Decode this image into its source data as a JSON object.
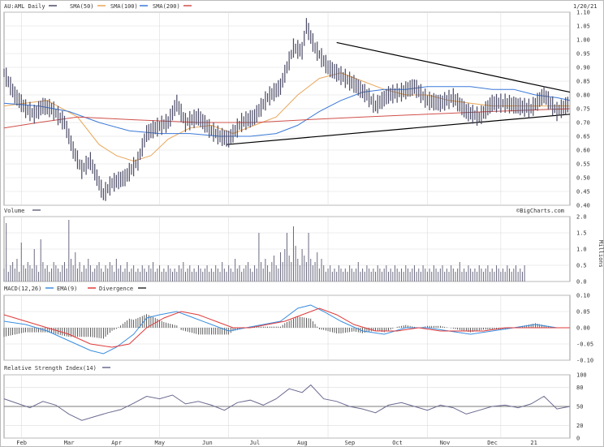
{
  "header": {
    "ticker_label": "AU:AML Daily",
    "sma50_label": "SMA(50)",
    "sma100_label": "SMA(100)",
    "sma200_label": "SMA(200)",
    "date": "1/20/21",
    "watermark": "©BigCharts.com"
  },
  "colors": {
    "price": "#4a4a66",
    "sma50": "#e8a65a",
    "sma100": "#3a78d8",
    "sma200": "#d0504a",
    "grid": "#dcdcdc",
    "axis": "#888888",
    "trend": "#000000",
    "volume": "#6a6a80",
    "macd": "#3a8ee0",
    "ema": "#e03a3a",
    "divergence": "#333333",
    "rsi": "#6a6a90"
  },
  "months": [
    "Feb",
    "Mar",
    "Apr",
    "May",
    "Jun",
    "Jul",
    "Aug",
    "Sep",
    "Oct",
    "Nov",
    "Dec",
    "21"
  ],
  "chart_data": [
    {
      "type": "line",
      "panel": "price",
      "ylim": [
        0.4,
        1.1
      ],
      "y_ticks": [
        "1.10",
        "1.05",
        "1.00",
        "0.95",
        "0.90",
        "0.85",
        "0.80",
        "0.75",
        "0.70",
        "0.65",
        "0.60",
        "0.55",
        "0.50",
        "0.45",
        "0.40"
      ],
      "price_path": [
        [
          0,
          0.88
        ],
        [
          5,
          0.8
        ],
        [
          10,
          0.75
        ],
        [
          14,
          0.73
        ],
        [
          18,
          0.76
        ],
        [
          22,
          0.75
        ],
        [
          28,
          0.7
        ],
        [
          32,
          0.6
        ],
        [
          36,
          0.53
        ],
        [
          40,
          0.56
        ],
        [
          46,
          0.44
        ],
        [
          50,
          0.48
        ],
        [
          56,
          0.5
        ],
        [
          62,
          0.56
        ],
        [
          66,
          0.66
        ],
        [
          70,
          0.68
        ],
        [
          76,
          0.7
        ],
        [
          80,
          0.77
        ],
        [
          84,
          0.7
        ],
        [
          90,
          0.72
        ],
        [
          96,
          0.67
        ],
        [
          100,
          0.65
        ],
        [
          104,
          0.64
        ],
        [
          110,
          0.7
        ],
        [
          116,
          0.72
        ],
        [
          122,
          0.79
        ],
        [
          128,
          0.83
        ],
        [
          134,
          0.97
        ],
        [
          138,
          0.96
        ],
        [
          140,
          1.05
        ],
        [
          144,
          0.97
        ],
        [
          150,
          0.9
        ],
        [
          156,
          0.87
        ],
        [
          162,
          0.84
        ],
        [
          168,
          0.8
        ],
        [
          172,
          0.76
        ],
        [
          178,
          0.8
        ],
        [
          184,
          0.81
        ],
        [
          190,
          0.83
        ],
        [
          196,
          0.78
        ],
        [
          202,
          0.77
        ],
        [
          208,
          0.79
        ],
        [
          214,
          0.74
        ],
        [
          220,
          0.72
        ],
        [
          226,
          0.77
        ],
        [
          232,
          0.77
        ],
        [
          238,
          0.76
        ],
        [
          244,
          0.75
        ],
        [
          250,
          0.8
        ],
        [
          256,
          0.74
        ],
        [
          262,
          0.77
        ]
      ],
      "series": [
        {
          "name": "SMA(50)",
          "path": [
            [
              0,
              0.76
            ],
            [
              20,
              0.78
            ],
            [
              34,
              0.72
            ],
            [
              44,
              0.62
            ],
            [
              52,
              0.58
            ],
            [
              60,
              0.56
            ],
            [
              68,
              0.58
            ],
            [
              76,
              0.64
            ],
            [
              86,
              0.68
            ],
            [
              96,
              0.69
            ],
            [
              106,
              0.66
            ],
            [
              116,
              0.69
            ],
            [
              126,
              0.72
            ],
            [
              136,
              0.8
            ],
            [
              146,
              0.86
            ],
            [
              156,
              0.88
            ],
            [
              166,
              0.85
            ],
            [
              176,
              0.82
            ],
            [
              186,
              0.8
            ],
            [
              196,
              0.8
            ],
            [
              206,
              0.78
            ],
            [
              216,
              0.77
            ],
            [
              226,
              0.76
            ],
            [
              236,
              0.76
            ],
            [
              246,
              0.76
            ],
            [
              256,
              0.76
            ],
            [
              262,
              0.76
            ]
          ]
        },
        {
          "name": "SMA(100)",
          "path": [
            [
              0,
              0.77
            ],
            [
              16,
              0.76
            ],
            [
              30,
              0.74
            ],
            [
              44,
              0.7
            ],
            [
              58,
              0.67
            ],
            [
              72,
              0.66
            ],
            [
              86,
              0.66
            ],
            [
              100,
              0.65
            ],
            [
              114,
              0.65
            ],
            [
              126,
              0.66
            ],
            [
              136,
              0.69
            ],
            [
              146,
              0.74
            ],
            [
              156,
              0.78
            ],
            [
              166,
              0.81
            ],
            [
              176,
              0.82
            ],
            [
              186,
              0.82
            ],
            [
              196,
              0.83
            ],
            [
              206,
              0.83
            ],
            [
              216,
              0.83
            ],
            [
              226,
              0.82
            ],
            [
              236,
              0.82
            ],
            [
              246,
              0.8
            ],
            [
              256,
              0.79
            ],
            [
              262,
              0.78
            ]
          ]
        },
        {
          "name": "SMA(200)",
          "path": [
            [
              0,
              0.68
            ],
            [
              16,
              0.7
            ],
            [
              34,
              0.72
            ],
            [
              60,
              0.71
            ],
            [
              90,
              0.7
            ],
            [
              116,
              0.7
            ],
            [
              140,
              0.71
            ],
            [
              166,
              0.72
            ],
            [
              196,
              0.73
            ],
            [
              226,
              0.74
            ],
            [
              262,
              0.75
            ]
          ]
        }
      ],
      "trendlines": [
        [
          [
            103,
            0.62
          ],
          [
            262,
            0.73
          ]
        ],
        [
          [
            154,
            0.99
          ],
          [
            262,
            0.81
          ]
        ]
      ]
    },
    {
      "type": "bar",
      "panel": "volume",
      "title": "Volume",
      "ylabel": "Millions",
      "ylim": [
        0,
        2.0
      ],
      "y_ticks": [
        "2.0",
        "1.5",
        "1.0",
        "0.5",
        "0.0"
      ],
      "values": [
        0.4,
        1.8,
        0.3,
        0.5,
        0.6,
        0.4,
        0.7,
        0.3,
        1.2,
        0.5,
        0.4,
        0.6,
        0.5,
        0.4,
        1.0,
        0.5,
        0.3,
        1.3,
        0.6,
        0.4,
        0.5,
        0.3,
        0.4,
        0.6,
        0.5,
        0.4,
        0.3,
        0.5,
        0.6,
        0.4,
        1.9,
        0.7,
        0.5,
        0.9,
        0.4,
        0.6,
        0.3,
        0.5,
        0.4,
        0.7,
        0.5,
        0.3,
        0.4,
        0.5,
        0.6,
        0.4,
        0.3,
        0.5,
        0.4,
        0.6,
        0.5,
        0.3,
        0.7,
        0.4,
        0.5,
        0.3,
        0.4,
        0.6,
        0.3,
        0.4,
        0.5,
        0.3,
        0.4,
        0.3,
        0.5,
        0.4,
        0.3,
        0.5,
        0.4,
        0.6,
        0.3,
        0.4,
        0.5,
        0.3,
        0.4,
        0.3,
        0.5,
        0.4,
        0.3,
        0.4,
        0.3,
        0.5,
        0.4,
        0.6,
        0.3,
        0.4,
        0.5,
        0.3,
        0.4,
        0.3,
        0.5,
        0.4,
        0.3,
        0.4,
        0.5,
        0.3,
        0.4,
        0.3,
        0.5,
        0.4,
        0.3,
        0.6,
        0.4,
        0.3,
        0.5,
        0.4,
        0.3,
        0.7,
        0.4,
        0.5,
        0.3,
        0.4,
        0.5,
        0.6,
        0.4,
        0.3,
        0.5,
        0.4,
        1.5,
        0.6,
        0.4,
        0.7,
        0.5,
        0.3,
        0.6,
        0.8,
        0.5,
        0.4,
        0.9,
        0.6,
        1.0,
        1.5,
        0.8,
        0.6,
        1.7,
        1.1,
        0.7,
        0.5,
        1.0,
        0.8,
        0.6,
        1.5,
        0.7,
        0.5,
        0.6,
        0.9,
        0.4,
        0.7,
        0.5,
        0.3,
        0.4,
        0.5,
        0.3,
        0.4,
        0.3,
        0.5,
        0.4,
        0.3,
        0.4,
        0.3,
        0.5,
        0.4,
        0.3,
        0.4,
        0.6,
        0.3,
        0.4,
        0.3,
        0.5,
        0.4,
        0.3,
        0.4,
        0.3,
        0.5,
        0.4,
        0.3,
        0.4,
        0.5,
        0.3,
        0.4,
        0.3,
        0.5,
        0.4,
        0.3,
        0.4,
        0.3,
        0.5,
        0.4,
        0.3,
        0.4,
        0.5,
        0.3,
        0.4,
        0.3,
        0.5,
        0.4,
        0.3,
        0.4,
        0.3,
        0.5,
        0.4,
        0.3,
        0.4,
        0.5,
        0.3,
        0.4,
        0.3,
        0.5,
        0.4,
        0.3,
        0.4,
        0.6,
        0.3,
        0.4,
        0.3,
        0.5,
        0.4,
        0.3,
        0.4,
        0.3,
        0.5,
        0.4,
        0.3,
        0.4,
        0.5,
        0.3,
        0.4,
        0.3,
        0.5,
        0.4,
        0.3,
        0.4,
        0.3,
        0.5,
        0.4,
        0.3,
        0.4,
        0.5,
        0.3,
        0.4,
        0.3,
        0.5
      ]
    },
    {
      "type": "line",
      "panel": "macd",
      "title": "MACD(12,26)",
      "ylim": [
        -0.1,
        0.1
      ],
      "y_ticks": [
        "0.10",
        "0.05",
        "0.00",
        "-0.05",
        "-0.10"
      ],
      "series": [
        {
          "name": "MACD(12,26)",
          "path": [
            [
              0,
              0.02
            ],
            [
              10,
              0.01
            ],
            [
              20,
              -0.01
            ],
            [
              30,
              -0.04
            ],
            [
              40,
              -0.07
            ],
            [
              46,
              -0.08
            ],
            [
              52,
              -0.06
            ],
            [
              60,
              -0.02
            ],
            [
              66,
              0.03
            ],
            [
              72,
              0.04
            ],
            [
              80,
              0.05
            ],
            [
              88,
              0.03
            ],
            [
              96,
              0.01
            ],
            [
              104,
              -0.01
            ],
            [
              112,
              0.0
            ],
            [
              120,
              0.01
            ],
            [
              128,
              0.02
            ],
            [
              136,
              0.06
            ],
            [
              142,
              0.07
            ],
            [
              148,
              0.05
            ],
            [
              156,
              0.02
            ],
            [
              166,
              -0.01
            ],
            [
              176,
              -0.02
            ],
            [
              186,
              0.0
            ],
            [
              196,
              0.0
            ],
            [
              206,
              -0.01
            ],
            [
              216,
              -0.02
            ],
            [
              226,
              -0.01
            ],
            [
              236,
              0.0
            ],
            [
              246,
              0.01
            ],
            [
              256,
              0.0
            ],
            [
              262,
              0.0
            ]
          ]
        },
        {
          "name": "EMA(9)",
          "path": [
            [
              0,
              0.04
            ],
            [
              10,
              0.02
            ],
            [
              20,
              0.0
            ],
            [
              30,
              -0.02
            ],
            [
              40,
              -0.05
            ],
            [
              50,
              -0.06
            ],
            [
              58,
              -0.05
            ],
            [
              66,
              0.0
            ],
            [
              74,
              0.03
            ],
            [
              82,
              0.05
            ],
            [
              90,
              0.04
            ],
            [
              98,
              0.02
            ],
            [
              106,
              0.0
            ],
            [
              114,
              0.0
            ],
            [
              122,
              0.01
            ],
            [
              130,
              0.02
            ],
            [
              138,
              0.04
            ],
            [
              146,
              0.06
            ],
            [
              154,
              0.04
            ],
            [
              162,
              0.01
            ],
            [
              172,
              -0.01
            ],
            [
              182,
              -0.01
            ],
            [
              192,
              0.0
            ],
            [
              202,
              -0.01
            ],
            [
              212,
              -0.01
            ],
            [
              222,
              -0.01
            ],
            [
              232,
              0.0
            ],
            [
              242,
              0.0
            ],
            [
              252,
              0.0
            ],
            [
              262,
              0.0
            ]
          ]
        }
      ]
    },
    {
      "type": "line",
      "panel": "rsi",
      "title": "Relative Strength Index(14)",
      "ylim": [
        0,
        100
      ],
      "y_ticks": [
        "100",
        "80",
        "50",
        "20",
        "0"
      ],
      "series": [
        {
          "name": "Relative Strength Index(14)",
          "path": [
            [
              0,
              62
            ],
            [
              6,
              55
            ],
            [
              12,
              48
            ],
            [
              18,
              58
            ],
            [
              24,
              52
            ],
            [
              30,
              38
            ],
            [
              36,
              28
            ],
            [
              42,
              34
            ],
            [
              48,
              40
            ],
            [
              54,
              45
            ],
            [
              60,
              55
            ],
            [
              66,
              66
            ],
            [
              72,
              62
            ],
            [
              78,
              68
            ],
            [
              84,
              54
            ],
            [
              90,
              58
            ],
            [
              96,
              52
            ],
            [
              102,
              44
            ],
            [
              108,
              56
            ],
            [
              114,
              60
            ],
            [
              120,
              52
            ],
            [
              126,
              62
            ],
            [
              132,
              78
            ],
            [
              138,
              72
            ],
            [
              142,
              84
            ],
            [
              148,
              62
            ],
            [
              154,
              58
            ],
            [
              160,
              50
            ],
            [
              166,
              46
            ],
            [
              172,
              40
            ],
            [
              178,
              52
            ],
            [
              184,
              56
            ],
            [
              190,
              50
            ],
            [
              196,
              44
            ],
            [
              202,
              52
            ],
            [
              208,
              48
            ],
            [
              214,
              38
            ],
            [
              220,
              44
            ],
            [
              226,
              50
            ],
            [
              232,
              52
            ],
            [
              238,
              48
            ],
            [
              244,
              54
            ],
            [
              250,
              66
            ],
            [
              256,
              46
            ],
            [
              262,
              50
            ]
          ]
        }
      ]
    }
  ]
}
